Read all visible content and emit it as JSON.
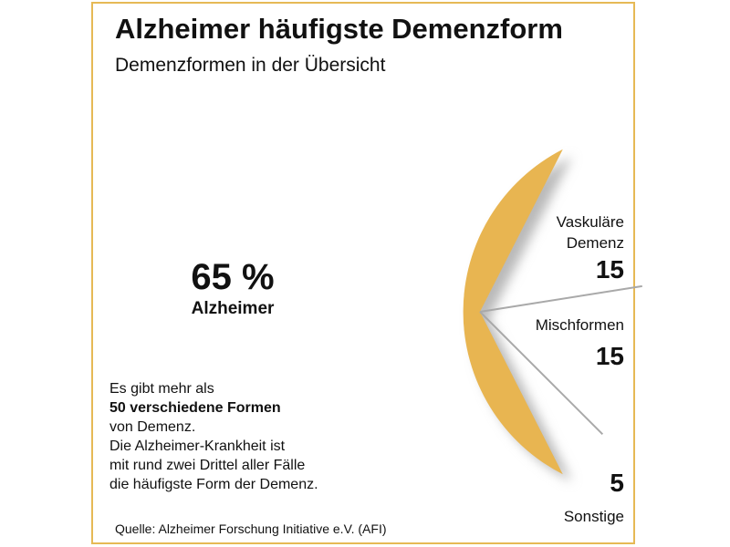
{
  "header": {
    "title": "Alzheimer häufigste Demenzform",
    "subtitle": "Demenzformen in der Übersicht"
  },
  "chart_data": {
    "type": "pie",
    "unit": "%",
    "slices": [
      {
        "label": "Alzheimer",
        "value": 65,
        "display": "65 %"
      },
      {
        "label": "Vaskuläre Demenz",
        "label_lines": [
          "Vaskuläre",
          "Demenz"
        ],
        "value": 15,
        "display": "15"
      },
      {
        "label": "Mischformen",
        "value": 15,
        "display": "15"
      },
      {
        "label": "Sonstige",
        "value": 5,
        "display": "5"
      }
    ],
    "highlight_color": "#e8b551",
    "shadow_color": "#b9b9b9",
    "leader_color": "#a9a9a9"
  },
  "note": {
    "lines": [
      {
        "text": "Es gibt mehr als",
        "bold": false
      },
      {
        "text": "50 verschiedene Formen",
        "bold": true
      },
      {
        "text": "von Demenz.",
        "bold": false
      },
      {
        "text": "Die Alzheimer-Krankheit ist",
        "bold": false
      },
      {
        "text": "mit rund zwei Drittel aller Fälle",
        "bold": false
      },
      {
        "text": "die häufigste Form der Demenz.",
        "bold": false
      }
    ]
  },
  "source": "Quelle: Alzheimer Forschung Initiative e.V. (AFI)",
  "frame_color": "#e6b955"
}
